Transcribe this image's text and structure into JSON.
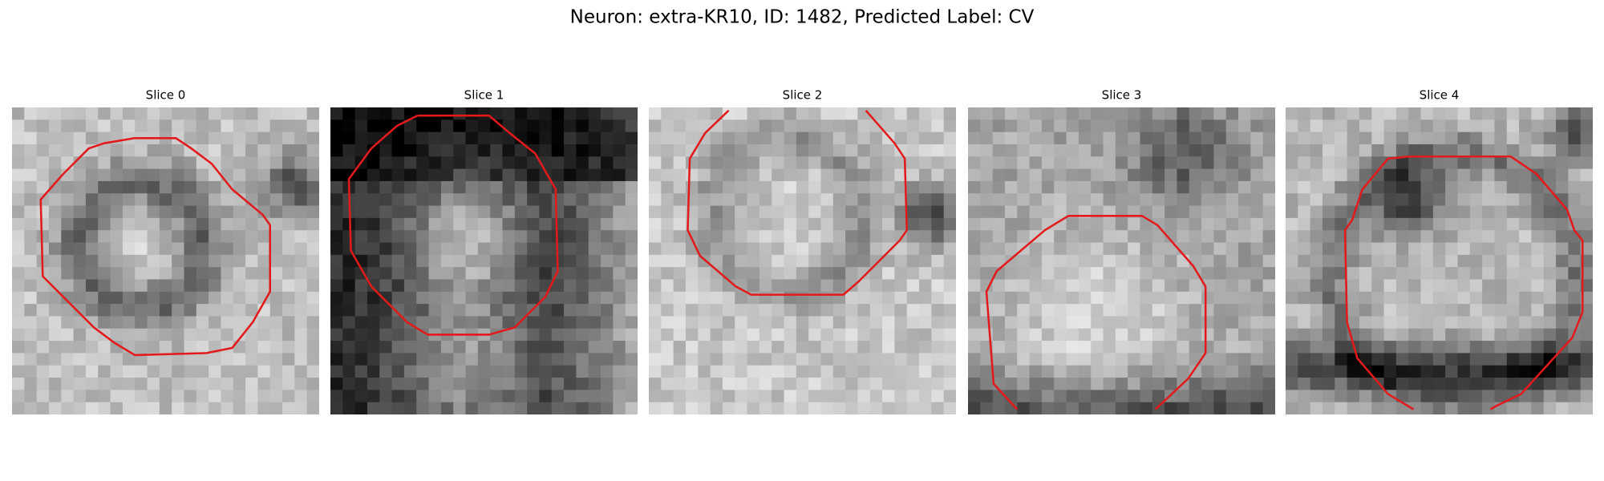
{
  "header": {
    "title": "Neuron: extra-KR10, ID: 1482, Predicted Label: CV"
  },
  "panels": [
    {
      "title": "Slice 0"
    },
    {
      "title": "Slice 1"
    },
    {
      "title": "Slice 2"
    },
    {
      "title": "Slice 3"
    },
    {
      "title": "Slice 4"
    }
  ]
}
